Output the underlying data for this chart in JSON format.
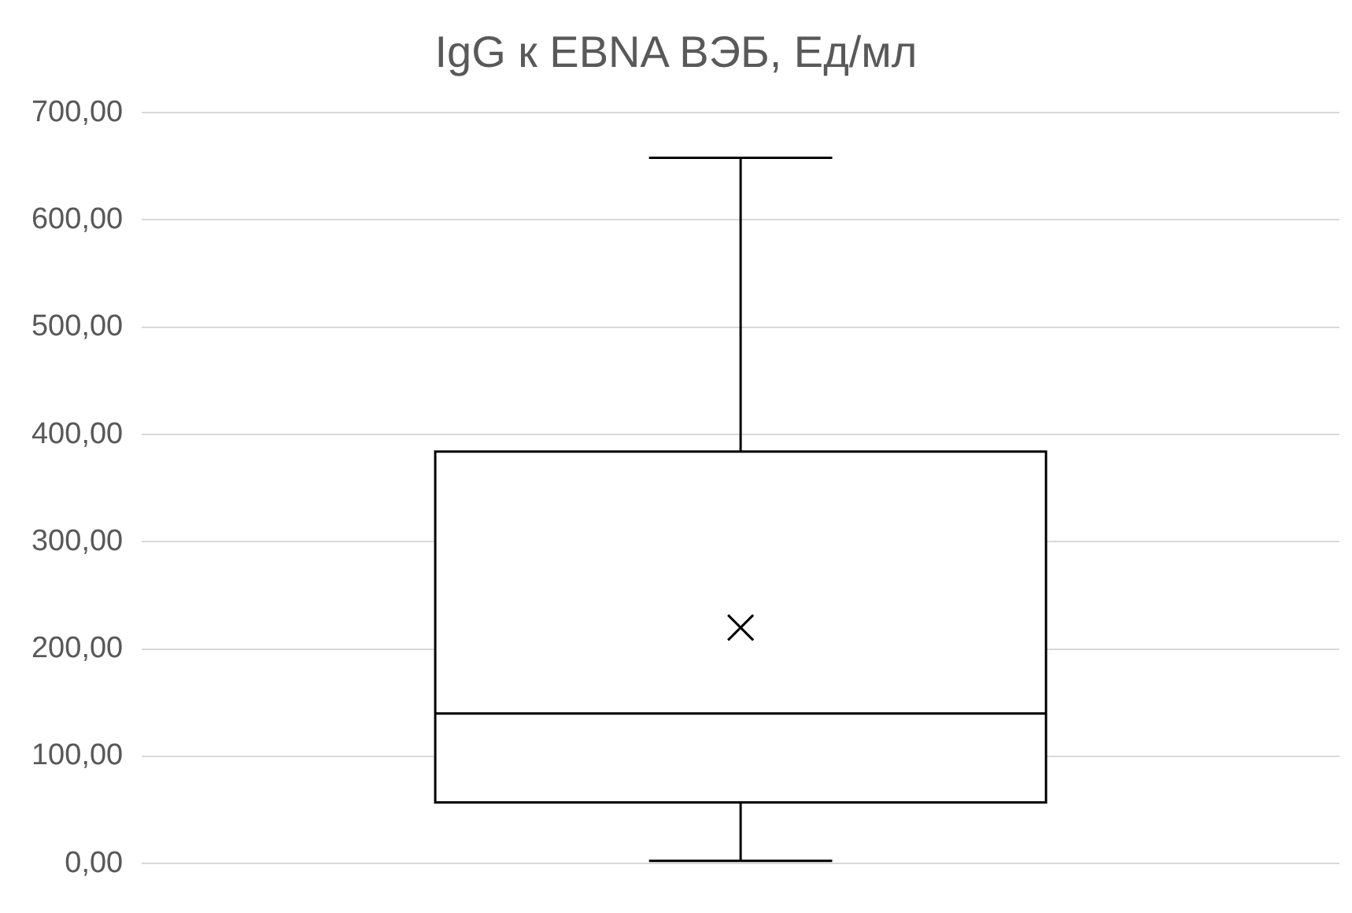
{
  "chart_data": {
    "type": "box",
    "title": "IgG к EBNA ВЭБ, Ед/мл",
    "categories": [
      null
    ],
    "boxes": [
      {
        "low": 2.5,
        "q1": 57,
        "median": 140,
        "q3": 384,
        "high": 658,
        "mean": 220
      }
    ],
    "ylim": [
      0,
      700
    ],
    "yticks": [
      {
        "value": 0,
        "label": "0,00"
      },
      {
        "value": 100,
        "label": "100,00"
      },
      {
        "value": 200,
        "label": "200,00"
      },
      {
        "value": 300,
        "label": "300,00"
      },
      {
        "value": 400,
        "label": "400,00"
      },
      {
        "value": 500,
        "label": "500,00"
      },
      {
        "value": 600,
        "label": "600,00"
      },
      {
        "value": 700,
        "label": "700,00"
      }
    ],
    "grid": "y",
    "legend": false
  }
}
